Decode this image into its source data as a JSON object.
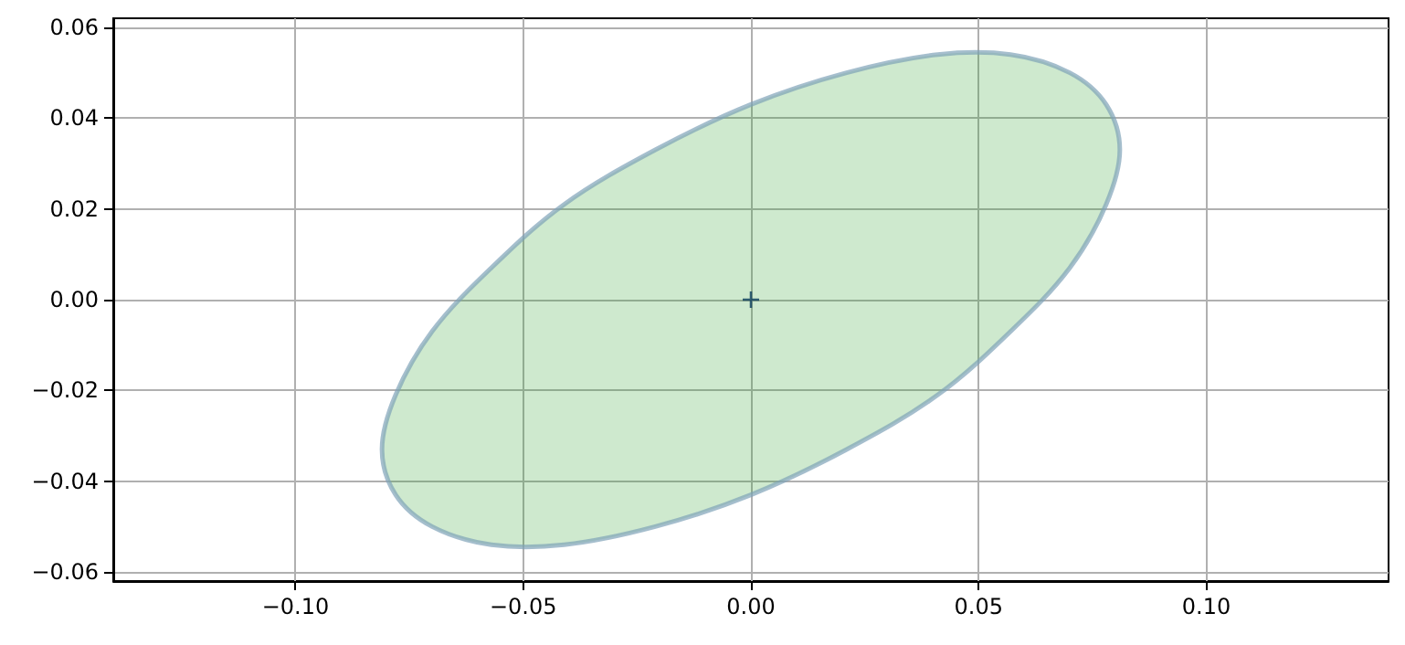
{
  "chart_data": {
    "type": "area",
    "grid": true,
    "xlim": [
      -0.14,
      0.14
    ],
    "ylim": [
      -0.062,
      0.062
    ],
    "xticks": [
      {
        "value": -0.1,
        "label": "−0.10"
      },
      {
        "value": -0.05,
        "label": "−0.05"
      },
      {
        "value": 0,
        "label": "0.00"
      },
      {
        "value": 0.05,
        "label": "0.05"
      },
      {
        "value": 0.1,
        "label": "0.10"
      }
    ],
    "yticks": [
      {
        "value": -0.06,
        "label": "−0.06"
      },
      {
        "value": -0.04,
        "label": "−0.04"
      },
      {
        "value": -0.02,
        "label": "−0.02"
      },
      {
        "value": 0,
        "label": "0.00"
      },
      {
        "value": 0.02,
        "label": "0.02"
      },
      {
        "value": 0.04,
        "label": "0.04"
      },
      {
        "value": 0.06,
        "label": "0.06"
      }
    ],
    "series": [
      {
        "color": "#2ca02c",
        "x": [
          0.081,
          0.078,
          0.07,
          0.057,
          0.041,
          0.021,
          0,
          -0.021,
          -0.041,
          -0.057,
          -0.07,
          -0.078,
          -0.081,
          -0.078,
          -0.07,
          -0.057,
          -0.041,
          -0.021,
          0,
          0.021,
          0.041,
          0.057,
          0.07,
          0.078
        ],
        "values": [
          0.033,
          0.043,
          0.05,
          0.054,
          0.054,
          0.05,
          0.043,
          0.033,
          0.021,
          0.007,
          -0.007,
          -0.021,
          -0.033,
          -0.043,
          -0.05,
          -0.054,
          -0.054,
          -0.05,
          -0.043,
          -0.033,
          -0.021,
          -0.007,
          0.007,
          0.021
        ]
      },
      {
        "type": "scatter",
        "color": "#0b3d5c",
        "marker": "cross",
        "x": [
          0
        ],
        "values": [
          0
        ]
      }
    ]
  }
}
